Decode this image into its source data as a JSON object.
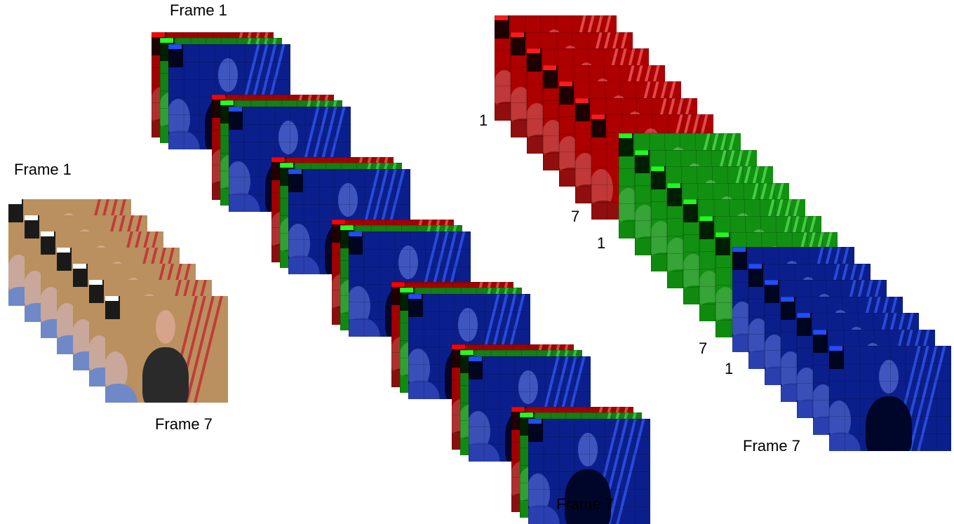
{
  "labels": {
    "stack_frame_first": "Frame 1",
    "stack_frame_last": "Frame 7",
    "rgb_frame_first": "Frame 1",
    "rgb_frame_last": "Frame 7",
    "channel_frame_last": "Frame 7",
    "red_first": "1",
    "red_last": "7",
    "green_first": "1",
    "green_last": "7",
    "blue_first": "1"
  },
  "colors": {
    "red_channel": "#b00000",
    "green_channel": "#129012",
    "blue_channel": "#0b1f8c",
    "natural_bg": "#b9905e",
    "suit": "#2a2a2a",
    "shirt": "#6f88c8",
    "skin": "#d6a48a"
  },
  "groups": {
    "natural_frames": 7,
    "rgb_triplets": 7,
    "red_frames": 7,
    "green_frames": 7,
    "blue_frames": 7
  }
}
